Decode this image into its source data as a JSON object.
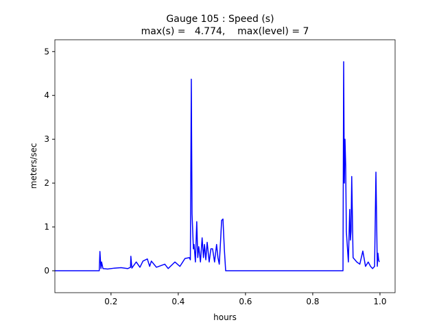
{
  "chart_data": {
    "type": "line",
    "title": "Gauge 105 : Speed (s)",
    "subtitle": "max(s) =   4.774,    max(level) = 7",
    "xlabel": "hours",
    "ylabel": "meters/sec",
    "xlim": [
      0.033,
      1.045
    ],
    "ylim": [
      -0.5,
      5.27
    ],
    "xticks": [
      0.2,
      0.4,
      0.6,
      0.8,
      {
        "value": 1,
        "label": "1.0"
      }
    ],
    "yticks": [
      0,
      1,
      2,
      3,
      4,
      5
    ],
    "grid": false,
    "series": [
      {
        "name": "s",
        "color": "#0000ff",
        "x": [
          0.033,
          0.165,
          0.167,
          0.17,
          0.172,
          0.176,
          0.19,
          0.21,
          0.23,
          0.25,
          0.258,
          0.259,
          0.262,
          0.275,
          0.286,
          0.295,
          0.308,
          0.315,
          0.32,
          0.335,
          0.36,
          0.37,
          0.39,
          0.405,
          0.42,
          0.433,
          0.436,
          0.4388,
          0.441,
          0.445,
          0.447,
          0.451,
          0.455,
          0.458,
          0.461,
          0.466,
          0.471,
          0.475,
          0.478,
          0.482,
          0.486,
          0.49,
          0.492,
          0.497,
          0.502,
          0.508,
          0.514,
          0.518,
          0.522,
          0.526,
          0.529,
          0.533,
          0.537,
          0.541,
          0.89,
          0.892,
          0.894,
          0.896,
          0.898,
          0.9,
          0.906,
          0.91,
          0.912,
          0.914,
          0.916,
          0.92,
          0.931,
          0.94,
          0.949,
          0.957,
          0.965,
          0.972,
          0.978,
          0.984,
          0.988,
          0.992,
          0.994,
          0.996,
          0.998
        ],
        "values": [
          0,
          0,
          0.44,
          0.05,
          0.2,
          0.05,
          0.04,
          0.06,
          0.07,
          0.05,
          0.08,
          0.33,
          0.06,
          0.2,
          0.08,
          0.22,
          0.27,
          0.1,
          0.22,
          0.08,
          0.15,
          0.05,
          0.2,
          0.1,
          0.28,
          0.3,
          0.25,
          4.37,
          1.3,
          0.5,
          0.6,
          0.2,
          1.12,
          0.3,
          0.55,
          0.2,
          0.75,
          0.3,
          0.6,
          0.25,
          0.65,
          0.35,
          0.2,
          0.5,
          0.5,
          0.2,
          0.6,
          0.3,
          0.15,
          0.7,
          1.15,
          1.18,
          0.5,
          0,
          0,
          4.77,
          2.0,
          3.0,
          2.4,
          0.9,
          0.2,
          1.4,
          0.7,
          0.9,
          2.15,
          0.3,
          0.2,
          0.15,
          0.45,
          0.1,
          0.2,
          0.1,
          0.05,
          0.1,
          2.25,
          0.1,
          0.4,
          0.25,
          0.2
        ]
      }
    ]
  }
}
